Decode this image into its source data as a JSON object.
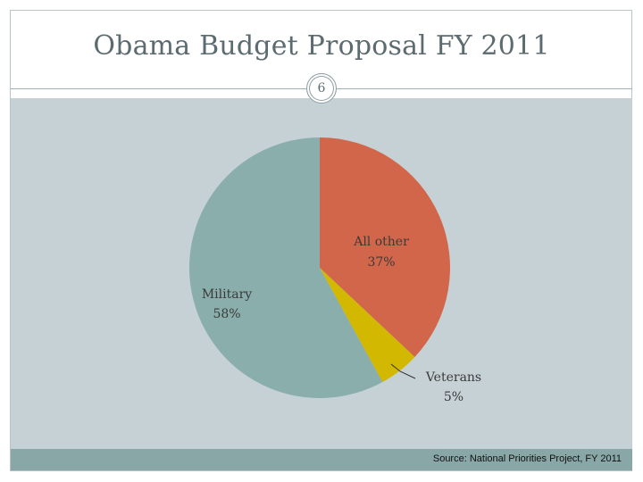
{
  "slide": {
    "title": "Obama Budget Proposal FY 2011",
    "number": "6",
    "source": "Source: National Priorities Project, FY 2011"
  },
  "colors": {
    "all_other": "#d2664a",
    "veterans": "#d2b800",
    "military": "#8aaeab",
    "panel": "#c6d1d6"
  },
  "chart_data": {
    "type": "pie",
    "title": "Obama Budget Proposal FY 2011",
    "slices": [
      {
        "name": "All other",
        "value": 37,
        "label": "37%"
      },
      {
        "name": "Veterans",
        "value": 5,
        "label": "5%"
      },
      {
        "name": "Military",
        "value": 58,
        "label": "58%"
      }
    ]
  }
}
